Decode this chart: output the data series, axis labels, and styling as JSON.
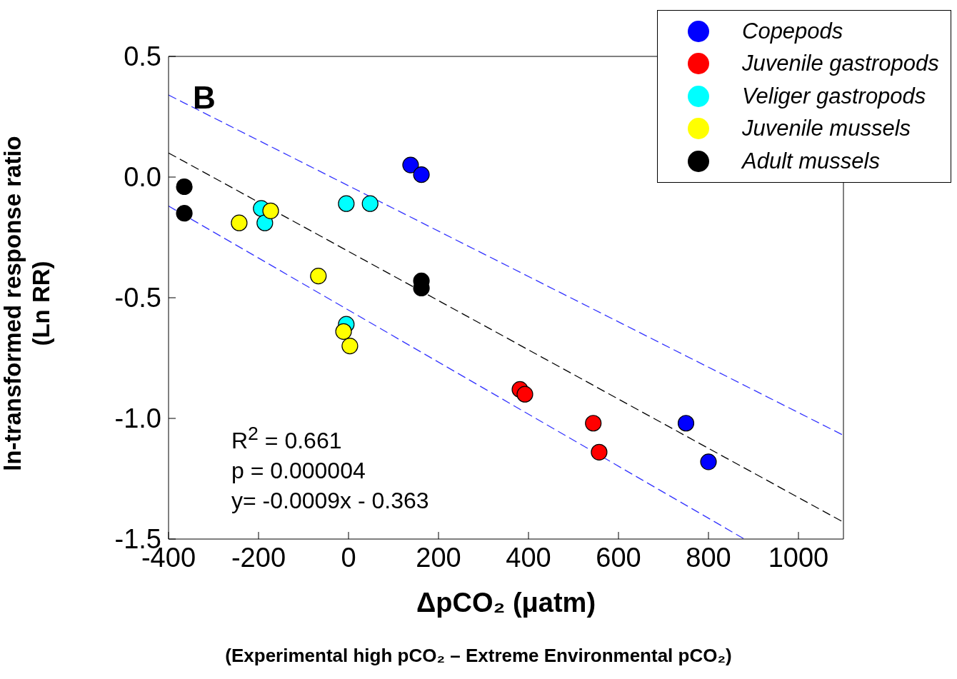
{
  "chart_data": {
    "type": "scatter",
    "xlabel": "ΔpCO₂ (μatm)",
    "ylabel": "ln-transformed response ratio\n(Ln RR)",
    "xlim": [
      -400,
      1100
    ],
    "xticks": [
      -400,
      -200,
      0,
      200,
      400,
      600,
      800,
      1000
    ],
    "ylim": [
      -1.5,
      0.5
    ],
    "yticks": [
      {
        "value": 0.5,
        "label": "0.5"
      },
      {
        "value": 0.0,
        "label": "0.0"
      },
      {
        "value": -0.5,
        "label": "-0.5"
      },
      {
        "value": -1.0,
        "label": "-1.0"
      },
      {
        "value": -1.5,
        "label": "-1.5"
      }
    ],
    "marker": "circle",
    "legend": "top right",
    "grid": false,
    "annotations": [
      "B",
      "R$^{2}$ = 0.661",
      "p = 0.000004",
      "y= -0.0009x - 0.363",
      "(Experimental high pCO₂ – Extreme Environmental pCO₂)"
    ],
    "series": [
      {
        "name": "Copepods",
        "color": "#0000ff",
        "x": [
          138,
          162,
          750,
          800
        ],
        "values": [
          0.05,
          0.01,
          -1.02,
          -1.18
        ]
      },
      {
        "name": "Juvenile gastropods",
        "color": "#ff0000",
        "x": [
          381,
          392,
          544,
          557
        ],
        "values": [
          -0.88,
          -0.9,
          -1.02,
          -1.14
        ]
      },
      {
        "name": "Veliger gastropods",
        "color": "#00ffff",
        "x": [
          -194,
          -186,
          -5,
          48,
          -5
        ],
        "values": [
          -0.13,
          -0.19,
          -0.11,
          -0.11,
          -0.61
        ]
      },
      {
        "name": "Juvenile mussels",
        "color": "#ffff00",
        "x": [
          -243,
          -173,
          -67,
          -11,
          3
        ],
        "values": [
          -0.19,
          -0.14,
          -0.41,
          -0.64,
          -0.7
        ]
      },
      {
        "name": "Adult mussels",
        "color": "#000000",
        "x": [
          -365,
          -365,
          162,
          162
        ],
        "values": [
          -0.04,
          -0.15,
          -0.43,
          -0.46
        ]
      },
      {
        "type": "line",
        "color": "#000000",
        "line_style": "dashed",
        "marker": "none",
        "x": [
          -400,
          1100
        ],
        "values": [
          0.1,
          -1.43
        ]
      },
      {
        "type": "line",
        "color": "#3333ff",
        "line_style": "dashed",
        "marker": "none",
        "x": [
          -400,
          1100
        ],
        "values": [
          0.34,
          -1.07
        ]
      },
      {
        "type": "line",
        "color": "#3333ff",
        "line_style": "dashed",
        "marker": "none",
        "x": [
          -400,
          880
        ],
        "values": [
          -0.12,
          -1.5
        ]
      }
    ]
  }
}
